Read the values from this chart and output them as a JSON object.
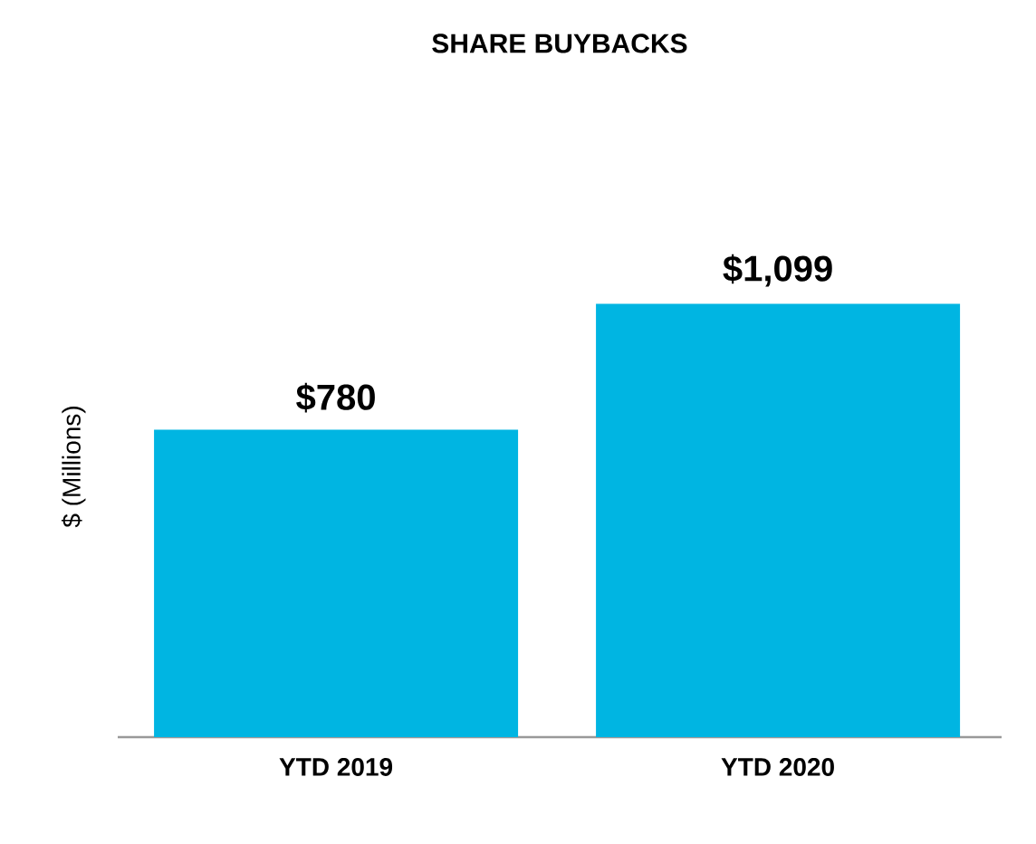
{
  "chart_data": {
    "type": "bar",
    "title": "SHARE BUYBACKS",
    "ylabel": "$ (Millions)",
    "categories": [
      "YTD 2019",
      "YTD 2020"
    ],
    "values": [
      780,
      1099
    ],
    "value_labels": [
      "$780",
      "$1,099"
    ],
    "color": "#00b5e2"
  }
}
